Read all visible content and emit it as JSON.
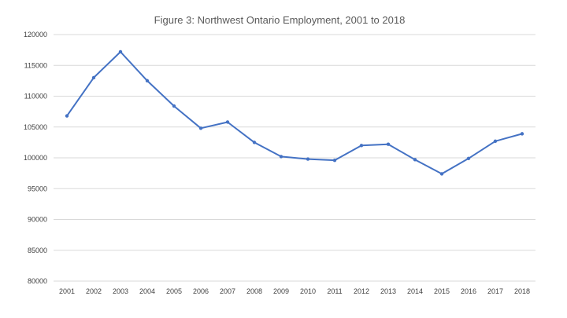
{
  "chart_data": {
    "type": "line",
    "title": "Figure 3: Northwest Ontario Employment, 2001 to 2018",
    "xlabel": "",
    "ylabel": "",
    "categories": [
      "2001",
      "2002",
      "2003",
      "2004",
      "2005",
      "2006",
      "2007",
      "2008",
      "2009",
      "2010",
      "2011",
      "2012",
      "2013",
      "2014",
      "2015",
      "2016",
      "2017",
      "2018"
    ],
    "series": [
      {
        "values": [
          106800,
          113000,
          117200,
          112500,
          108400,
          104800,
          105800,
          102500,
          100200,
          99800,
          99600,
          102000,
          102200,
          99700,
          97400,
          99900,
          102700,
          103900
        ],
        "color": "#4472c4"
      }
    ],
    "ylim": [
      80000,
      120000
    ],
    "yticks": [
      "80000",
      "85000",
      "90000",
      "95000",
      "100000",
      "105000",
      "110000",
      "115000",
      "120000"
    ],
    "grid": true,
    "legend": "none"
  }
}
